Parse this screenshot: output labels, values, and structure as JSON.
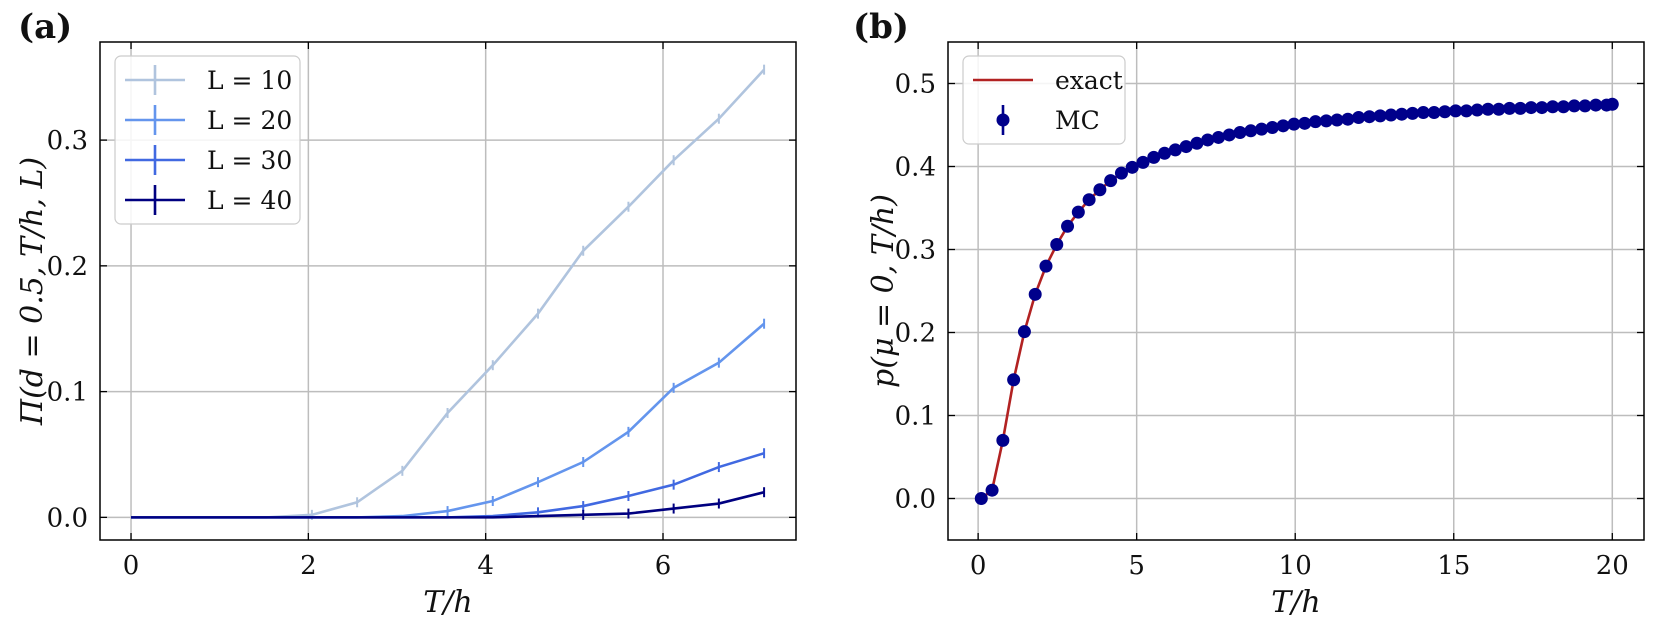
{
  "chart_data": [
    {
      "panel_label": "(a)",
      "type": "line",
      "xlabel": "T/h",
      "ylabel": "Π(d = 0.5, T/h, L)",
      "xlim": [
        -0.35,
        7.5
      ],
      "ylim": [
        -0.018,
        0.378
      ],
      "xticks": [
        0,
        2,
        4,
        6
      ],
      "xtick_labels": [
        "0",
        "2",
        "4",
        "6"
      ],
      "yticks": [
        0.0,
        0.1,
        0.2,
        0.3
      ],
      "ytick_labels": [
        "0.0",
        "0.1",
        "0.2",
        "0.3"
      ],
      "grid": true,
      "legend_position": "top-left",
      "x": [
        0,
        0.51,
        1.02,
        1.53,
        2.04,
        2.55,
        3.06,
        3.57,
        4.08,
        4.59,
        5.1,
        5.61,
        6.12,
        6.63,
        7.14
      ],
      "series": [
        {
          "name": "L = 10",
          "color": "#b0c4de",
          "values": [
            0,
            0,
            0,
            0,
            0.002,
            0.012,
            0.037,
            0.083,
            0.121,
            0.162,
            0.212,
            0.247,
            0.284,
            0.317,
            0.356
          ]
        },
        {
          "name": "L = 20",
          "color": "#6495ed",
          "values": [
            0,
            0,
            0,
            0,
            0,
            0,
            0.001,
            0.005,
            0.013,
            0.028,
            0.044,
            0.068,
            0.103,
            0.123,
            0.154
          ]
        },
        {
          "name": "L = 30",
          "color": "#4169e1",
          "values": [
            0,
            0,
            0,
            0,
            0,
            0,
            0,
            0,
            0.001,
            0.004,
            0.009,
            0.017,
            0.026,
            0.04,
            0.051
          ]
        },
        {
          "name": "L = 40",
          "color": "#000080",
          "values": [
            0,
            0,
            0,
            0,
            0,
            0,
            0,
            0,
            0,
            0.001,
            0.002,
            0.003,
            0.007,
            0.011,
            0.02
          ]
        }
      ]
    },
    {
      "panel_label": "(b)",
      "type": "line",
      "xlabel": "T/h",
      "ylabel": "p(μ = 0, T/h)",
      "xlim": [
        -0.95,
        21.0
      ],
      "ylim": [
        -0.05,
        0.55
      ],
      "xticks": [
        0,
        5,
        10,
        15,
        20
      ],
      "xtick_labels": [
        "0",
        "5",
        "10",
        "15",
        "20"
      ],
      "yticks": [
        0.0,
        0.1,
        0.2,
        0.3,
        0.4,
        0.5
      ],
      "ytick_labels": [
        "0.0",
        "0.1",
        "0.2",
        "0.3",
        "0.4",
        "0.5"
      ],
      "grid": true,
      "legend_position": "top-left",
      "series": [
        {
          "name": "exact",
          "style": "line",
          "color": "#b22222"
        },
        {
          "name": "MC",
          "style": "markers",
          "color": "#00008b",
          "x": [
            0.1,
            0.44,
            0.78,
            1.12,
            1.46,
            1.8,
            2.14,
            2.48,
            2.82,
            3.16,
            3.5,
            3.84,
            4.18,
            4.52,
            4.86,
            5.2,
            5.54,
            5.88,
            6.22,
            6.56,
            6.9,
            7.24,
            7.58,
            7.92,
            8.26,
            8.6,
            8.94,
            9.28,
            9.62,
            9.96,
            10.3,
            10.64,
            10.98,
            11.32,
            11.66,
            12.0,
            12.34,
            12.68,
            13.02,
            13.36,
            13.7,
            14.04,
            14.38,
            14.72,
            15.06,
            15.4,
            15.74,
            16.08,
            16.42,
            16.76,
            17.1,
            17.44,
            17.78,
            18.12,
            18.46,
            18.8,
            19.14,
            19.48,
            19.82,
            20.0
          ],
          "values": [
            0.0,
            0.01,
            0.07,
            0.143,
            0.201,
            0.246,
            0.28,
            0.306,
            0.328,
            0.345,
            0.36,
            0.372,
            0.383,
            0.392,
            0.399,
            0.405,
            0.411,
            0.416,
            0.42,
            0.424,
            0.428,
            0.432,
            0.435,
            0.438,
            0.441,
            0.443,
            0.445,
            0.447,
            0.449,
            0.451,
            0.452,
            0.454,
            0.455,
            0.456,
            0.457,
            0.459,
            0.46,
            0.461,
            0.462,
            0.463,
            0.464,
            0.465,
            0.465,
            0.466,
            0.467,
            0.467,
            0.468,
            0.469,
            0.469,
            0.47,
            0.47,
            0.471,
            0.471,
            0.472,
            0.472,
            0.473,
            0.473,
            0.474,
            0.474,
            0.475
          ]
        }
      ]
    }
  ]
}
